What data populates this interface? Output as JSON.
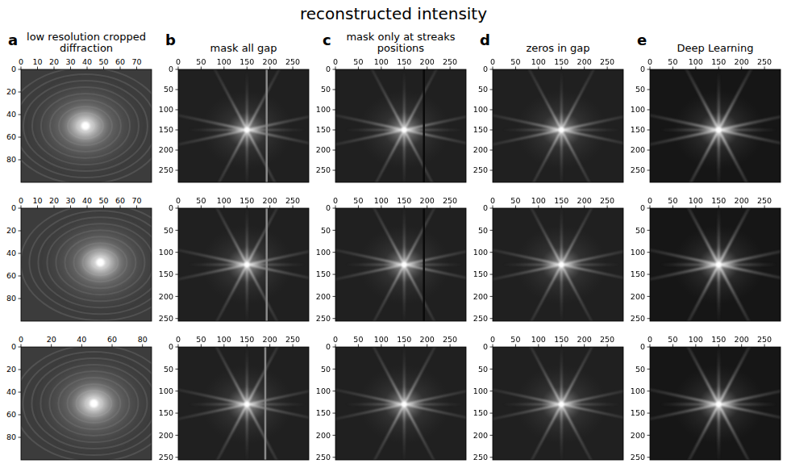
{
  "title": "reconstructed intensity",
  "columns": [
    {
      "label": "a",
      "title": "low resolution cropped diffraction"
    },
    {
      "label": "b",
      "title": "mask all gap"
    },
    {
      "label": "c",
      "title": "mask only at streaks positions"
    },
    {
      "label": "d",
      "title": "zeros in gap"
    },
    {
      "label": "e",
      "title": "Deep Learning"
    }
  ],
  "chart_data": [
    {
      "type": "image",
      "xlim": [
        0,
        79
      ],
      "ylim": [
        100,
        0
      ],
      "xticks": [
        0,
        10,
        20,
        30,
        40,
        50,
        60,
        70
      ],
      "yticks": [
        0,
        20,
        40,
        60,
        80
      ],
      "peak": {
        "x": 39,
        "y": 50
      }
    },
    {
      "type": "image",
      "xlim": [
        0,
        285
      ],
      "ylim": [
        280,
        0
      ],
      "xticks": [
        0,
        50,
        100,
        150,
        200,
        250
      ],
      "yticks": [
        0,
        50,
        100,
        150,
        200,
        250
      ],
      "peak": {
        "x": 150,
        "y": 150
      },
      "gap_x": 193
    },
    {
      "type": "image",
      "xlim": [
        0,
        285
      ],
      "ylim": [
        280,
        0
      ],
      "xticks": [
        0,
        50,
        100,
        150,
        200,
        250
      ],
      "yticks": [
        0,
        50,
        100,
        150,
        200,
        250
      ],
      "peak": {
        "x": 150,
        "y": 150
      },
      "gap_x": 193
    },
    {
      "type": "image",
      "xlim": [
        0,
        285
      ],
      "ylim": [
        280,
        0
      ],
      "xticks": [
        0,
        50,
        100,
        150,
        200,
        250
      ],
      "yticks": [
        0,
        50,
        100,
        150,
        200,
        250
      ],
      "peak": {
        "x": 150,
        "y": 150
      }
    },
    {
      "type": "image",
      "xlim": [
        0,
        285
      ],
      "ylim": [
        280,
        0
      ],
      "xticks": [
        0,
        50,
        100,
        150,
        200,
        250
      ],
      "yticks": [
        0,
        50,
        100,
        150,
        200,
        250
      ],
      "peak": {
        "x": 150,
        "y": 150
      }
    },
    {
      "type": "image",
      "xlim": [
        0,
        79
      ],
      "ylim": [
        100,
        0
      ],
      "xticks": [
        0,
        10,
        20,
        30,
        40,
        50,
        60,
        70
      ],
      "yticks": [
        0,
        20,
        40,
        60,
        80
      ],
      "peak": {
        "x": 48,
        "y": 48
      }
    },
    {
      "type": "image",
      "xlim": [
        0,
        285
      ],
      "ylim": [
        256,
        0
      ],
      "xticks": [
        0,
        50,
        100,
        150,
        200,
        250
      ],
      "yticks": [
        0,
        50,
        100,
        150,
        200,
        250
      ],
      "peak": {
        "x": 150,
        "y": 128
      },
      "gap_x": 193
    },
    {
      "type": "image",
      "xlim": [
        0,
        285
      ],
      "ylim": [
        256,
        0
      ],
      "xticks": [
        0,
        50,
        100,
        150,
        200,
        250
      ],
      "yticks": [
        0,
        50,
        100,
        150,
        200,
        250
      ],
      "peak": {
        "x": 150,
        "y": 128
      },
      "gap_x": 193
    },
    {
      "type": "image",
      "xlim": [
        0,
        285
      ],
      "ylim": [
        256,
        0
      ],
      "xticks": [
        0,
        50,
        100,
        150,
        200,
        250
      ],
      "yticks": [
        0,
        50,
        100,
        150,
        200,
        250
      ],
      "peak": {
        "x": 150,
        "y": 128
      }
    },
    {
      "type": "image",
      "xlim": [
        0,
        285
      ],
      "ylim": [
        256,
        0
      ],
      "xticks": [
        0,
        50,
        100,
        150,
        200,
        250
      ],
      "yticks": [
        0,
        50,
        100,
        150,
        200,
        250
      ],
      "peak": {
        "x": 150,
        "y": 128
      }
    },
    {
      "type": "image",
      "xlim": [
        0,
        86
      ],
      "ylim": [
        100,
        0
      ],
      "xticks": [
        0,
        20,
        40,
        60,
        80
      ],
      "yticks": [
        0,
        20,
        40,
        60,
        80
      ],
      "peak": {
        "x": 48,
        "y": 50
      }
    },
    {
      "type": "image",
      "xlim": [
        0,
        285
      ],
      "ylim": [
        256,
        0
      ],
      "xticks": [
        0,
        50,
        100,
        150,
        200,
        250
      ],
      "yticks": [
        0,
        50,
        100,
        150,
        200,
        250
      ],
      "peak": {
        "x": 150,
        "y": 130
      },
      "gap_x": 190
    },
    {
      "type": "image",
      "xlim": [
        0,
        285
      ],
      "ylim": [
        256,
        0
      ],
      "xticks": [
        0,
        50,
        100,
        150,
        200,
        250
      ],
      "yticks": [
        0,
        50,
        100,
        150,
        200,
        250
      ],
      "peak": {
        "x": 150,
        "y": 130
      }
    },
    {
      "type": "image",
      "xlim": [
        0,
        285
      ],
      "ylim": [
        256,
        0
      ],
      "xticks": [
        0,
        50,
        100,
        150,
        200,
        250
      ],
      "yticks": [
        0,
        50,
        100,
        150,
        200,
        250
      ],
      "peak": {
        "x": 150,
        "y": 130
      }
    },
    {
      "type": "image",
      "xlim": [
        0,
        285
      ],
      "ylim": [
        256,
        0
      ],
      "xticks": [
        0,
        50,
        100,
        150,
        200,
        250
      ],
      "yticks": [
        0,
        50,
        100,
        150,
        200,
        250
      ],
      "peak": {
        "x": 150,
        "y": 130
      }
    }
  ]
}
